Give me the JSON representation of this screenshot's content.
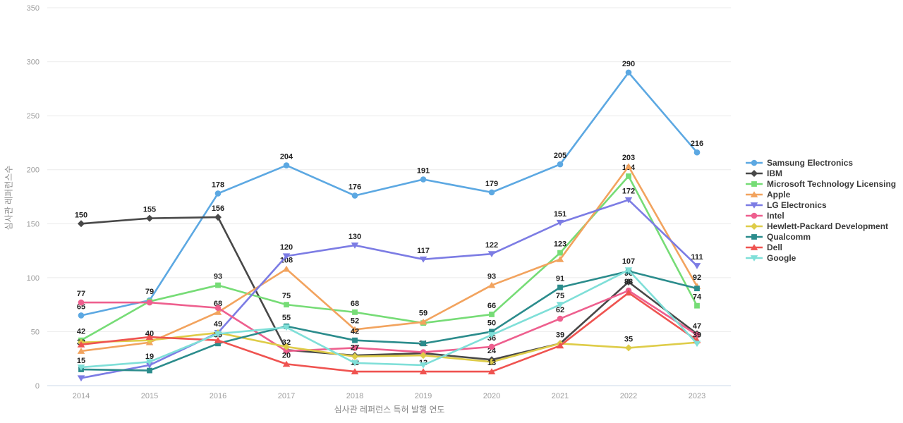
{
  "chart_data": {
    "type": "line",
    "title": "",
    "xlabel": "심사관 레퍼런스 특허 발행 연도",
    "ylabel": "심사관 레퍼런스수",
    "x": [
      2014,
      2015,
      2016,
      2017,
      2018,
      2019,
      2020,
      2021,
      2022,
      2023
    ],
    "ylim": [
      0,
      350
    ],
    "yticks": [
      0,
      50,
      100,
      150,
      200,
      250,
      300,
      350
    ],
    "grid": true,
    "legend_position": "right",
    "colors": {
      "grid": "#ebebeb",
      "axis_line": "#cdd8ea",
      "tick_text": "#9e9e9e",
      "point_label_text": "#222222"
    },
    "series": [
      {
        "name": "Samsung Electronics",
        "color": "#5CA8E2",
        "marker": "circle",
        "values": [
          65,
          79,
          178,
          204,
          176,
          191,
          179,
          205,
          290,
          216
        ],
        "labels": [
          65,
          79,
          178,
          204,
          176,
          191,
          179,
          205,
          290,
          216
        ]
      },
      {
        "name": "IBM",
        "color": "#484848",
        "marker": "diamond",
        "values": [
          150,
          155,
          156,
          33,
          28,
          30,
          24,
          39,
          96,
          48
        ],
        "labels": [
          150,
          155,
          156,
          null,
          null,
          null,
          24,
          null,
          96,
          null
        ]
      },
      {
        "name": "Microsoft Technology Licensing",
        "color": "#76DC76",
        "marker": "square",
        "values": [
          42,
          78,
          93,
          75,
          68,
          58,
          66,
          123,
          194,
          74
        ],
        "labels": [
          42,
          null,
          93,
          75,
          68,
          null,
          66,
          123,
          194,
          74
        ]
      },
      {
        "name": "Apple",
        "color": "#F2A35E",
        "marker": "triangle-up",
        "values": [
          32,
          40,
          68,
          108,
          52,
          59,
          93,
          117,
          203,
          92
        ],
        "labels": [
          32,
          40,
          68,
          108,
          52,
          59,
          93,
          null,
          203,
          92
        ]
      },
      {
        "name": "LG Electronics",
        "color": "#7C7CE4",
        "marker": "triangle-down",
        "values": [
          7,
          19,
          49,
          120,
          130,
          117,
          122,
          151,
          172,
          111
        ],
        "labels": [
          7,
          19,
          null,
          120,
          130,
          117,
          122,
          151,
          172,
          111
        ]
      },
      {
        "name": "Intel",
        "color": "#EE5F8E",
        "marker": "circle",
        "values": [
          77,
          77,
          72,
          32,
          35,
          31,
          36,
          62,
          88,
          47
        ],
        "labels": [
          77,
          null,
          null,
          32,
          null,
          31,
          36,
          62,
          88,
          47
        ]
      },
      {
        "name": "Hewlett-Packard Development",
        "color": "#DECC48",
        "marker": "diamond",
        "values": [
          40,
          42,
          49,
          36,
          27,
          28,
          22,
          39,
          35,
          40
        ],
        "labels": [
          null,
          null,
          49,
          null,
          27,
          null,
          null,
          39,
          35,
          null
        ]
      },
      {
        "name": "Qualcomm",
        "color": "#2B8C8C",
        "marker": "square",
        "values": [
          15,
          14,
          39,
          55,
          42,
          39,
          50,
          91,
          106,
          90
        ],
        "labels": [
          15,
          null,
          39,
          55,
          42,
          null,
          50,
          91,
          null,
          null
        ]
      },
      {
        "name": "Dell",
        "color": "#EF5350",
        "marker": "triangle-up",
        "values": [
          38,
          45,
          42,
          20,
          13,
          13,
          13,
          37,
          86,
          42
        ],
        "labels": [
          null,
          null,
          null,
          20,
          13,
          13,
          13,
          null,
          null,
          null
        ]
      },
      {
        "name": "Google",
        "color": "#7FDFD8",
        "marker": "triangle-down",
        "values": [
          17,
          22,
          48,
          54,
          21,
          19,
          47,
          75,
          107,
          39
        ],
        "labels": [
          null,
          null,
          null,
          null,
          null,
          null,
          null,
          75,
          107,
          39
        ]
      }
    ]
  }
}
